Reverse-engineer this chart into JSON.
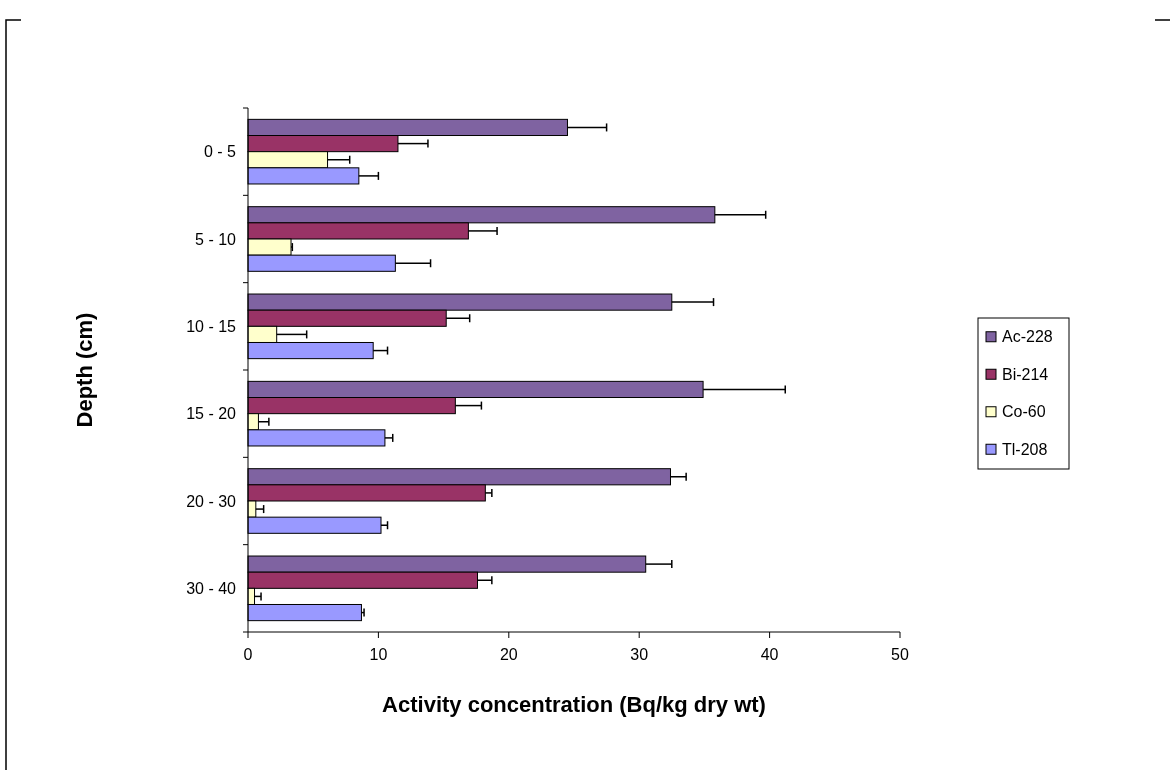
{
  "chart_data": {
    "type": "bar",
    "orientation": "horizontal",
    "xlabel": "Activity concentration (Bq/kg dry wt)",
    "ylabel": "Depth (cm)",
    "categories": [
      "0 - 5",
      "5 - 10",
      "10 - 15",
      "15 - 20",
      "20 - 30",
      "30 - 40"
    ],
    "series": [
      {
        "name": "Ac-228",
        "color": "#7f63a1",
        "values": [
          24.5,
          35.8,
          32.5,
          34.9,
          32.4,
          30.5
        ],
        "errors": [
          [
            24.5,
            27.5
          ],
          [
            35.8,
            39.7
          ],
          [
            32.5,
            35.7
          ],
          [
            34.9,
            41.2
          ],
          [
            32.4,
            33.6
          ],
          [
            30.5,
            32.5
          ]
        ]
      },
      {
        "name": "Bi-214",
        "color": "#993366",
        "values": [
          11.5,
          16.9,
          15.2,
          15.9,
          18.2,
          17.6
        ],
        "errors": [
          [
            11.5,
            13.8
          ],
          [
            16.9,
            19.1
          ],
          [
            15.2,
            17.0
          ],
          [
            15.9,
            17.9
          ],
          [
            18.2,
            18.7
          ],
          [
            17.6,
            18.7
          ]
        ]
      },
      {
        "name": "Co-60",
        "color": "#ffffcc",
        "values": [
          6.1,
          3.3,
          2.2,
          0.8,
          0.6,
          0.5
        ],
        "errors": [
          [
            6.1,
            7.8
          ],
          [
            3.3,
            3.4
          ],
          [
            2.2,
            4.5
          ],
          [
            0.8,
            1.6
          ],
          [
            0.6,
            1.2
          ],
          [
            0.5,
            1.0
          ]
        ]
      },
      {
        "name": "Tl-208",
        "color": "#9999ff",
        "values": [
          8.5,
          11.3,
          9.6,
          10.5,
          10.2,
          8.7
        ],
        "errors": [
          [
            8.5,
            10.0
          ],
          [
            11.3,
            14.0
          ],
          [
            9.6,
            10.7
          ],
          [
            10.5,
            11.1
          ],
          [
            10.2,
            10.7
          ],
          [
            8.7,
            8.9
          ]
        ]
      }
    ],
    "xlim": [
      0,
      50
    ],
    "xticks": [
      0,
      10,
      20,
      30,
      40,
      50
    ],
    "grid": false,
    "legend": "right"
  }
}
